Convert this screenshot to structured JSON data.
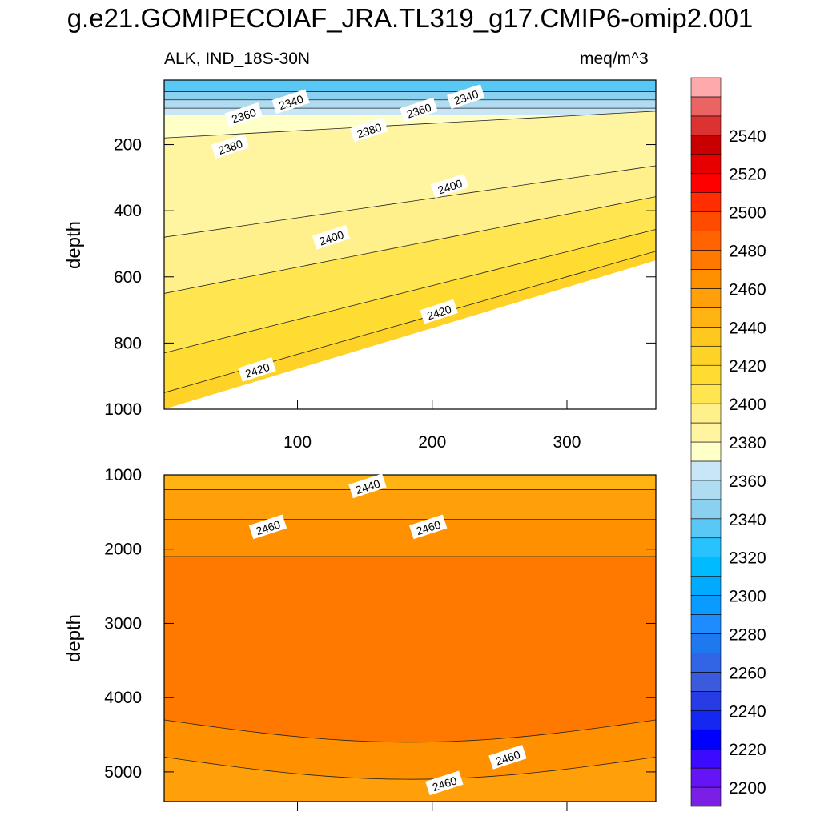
{
  "title": "g.e21.GOMIPECOIAF_JRA.TL319_g17.CMIP6-omip2.001",
  "left_string": "ALK, IND_18S-30N",
  "right_string": "meq/m^3",
  "chart_data": [
    {
      "type": "contour",
      "panel": "upper",
      "xlabel": "",
      "ylabel": "depth",
      "xlim": [
        1,
        366
      ],
      "ylim": [
        1000,
        5
      ],
      "x_ticks": [
        100,
        200,
        300
      ],
      "y_ticks": [
        200,
        400,
        600,
        800,
        1000
      ],
      "y_reversed": true,
      "contour_interval": 10,
      "bands": [
        {
          "value": 2330,
          "depth_top": 5,
          "depth_bottom": 40
        },
        {
          "value": 2340,
          "depth_top": 40,
          "depth_bottom": 65
        },
        {
          "value": 2350,
          "depth_top": 65,
          "depth_bottom": 90
        },
        {
          "value": 2360,
          "depth_top": 90,
          "depth_bottom": 110
        },
        {
          "value": 2370,
          "depth_top": 110,
          "depth_bottom": 180
        },
        {
          "value": 2380,
          "depth_top": 180,
          "depth_bottom": 480
        },
        {
          "value": 2390,
          "depth_top": 480,
          "depth_bottom": 650
        },
        {
          "value": 2400,
          "depth_top": 650,
          "depth_bottom": 830
        },
        {
          "value": 2410,
          "depth_top": 830,
          "depth_bottom": 950
        },
        {
          "value": 2420,
          "depth_top": 950,
          "depth_bottom": 1000
        }
      ],
      "labels": [
        {
          "text": "2340",
          "x": 95,
          "depth": 70
        },
        {
          "text": "2340",
          "x": 225,
          "depth": 55
        },
        {
          "text": "2360",
          "x": 60,
          "depth": 110
        },
        {
          "text": "2360",
          "x": 190,
          "depth": 95
        },
        {
          "text": "2380",
          "x": 50,
          "depth": 205
        },
        {
          "text": "2380",
          "x": 153,
          "depth": 155
        },
        {
          "text": "2400",
          "x": 125,
          "depth": 480
        },
        {
          "text": "2400",
          "x": 213,
          "depth": 325
        },
        {
          "text": "2420",
          "x": 70,
          "depth": 880
        },
        {
          "text": "2420",
          "x": 205,
          "depth": 705
        }
      ]
    },
    {
      "type": "contour",
      "panel": "lower",
      "xlabel": "",
      "ylabel": "depth",
      "xlim": [
        1,
        366
      ],
      "ylim": [
        5400,
        1000
      ],
      "y_ticks": [
        1000,
        2000,
        3000,
        4000,
        5000
      ],
      "y_reversed": true,
      "contour_interval": 10,
      "bands": [
        {
          "value": 2440,
          "depth_top": 1000,
          "depth_bottom": 1200
        },
        {
          "value": 2450,
          "depth_top": 1200,
          "depth_bottom": 1600
        },
        {
          "value": 2460,
          "depth_top": 1600,
          "depth_bottom": 2100
        },
        {
          "value": 2470,
          "depth_top": 2100,
          "depth_bottom": 4300
        },
        {
          "value": 2460,
          "depth_top": 4300,
          "depth_bottom": 4800
        },
        {
          "value": 2450,
          "depth_top": 4800,
          "depth_bottom": 5400
        }
      ],
      "labels": [
        {
          "text": "2440",
          "x": 152,
          "depth": 1150
        },
        {
          "text": "2460",
          "x": 78,
          "depth": 1700
        },
        {
          "text": "2460",
          "x": 197,
          "depth": 1700
        },
        {
          "text": "2460",
          "x": 256,
          "depth": 4800
        },
        {
          "text": "2460",
          "x": 209,
          "depth": 5150
        }
      ]
    }
  ],
  "colorbar": {
    "tick_labels": [
      "2200",
      "2220",
      "2240",
      "2260",
      "2280",
      "2300",
      "2320",
      "2340",
      "2360",
      "2380",
      "2400",
      "2420",
      "2440",
      "2460",
      "2480",
      "2500",
      "2520",
      "2540"
    ],
    "levels": [
      2200,
      2210,
      2220,
      2230,
      2240,
      2250,
      2260,
      2270,
      2280,
      2290,
      2300,
      2310,
      2320,
      2330,
      2340,
      2350,
      2360,
      2370,
      2380,
      2390,
      2400,
      2410,
      2420,
      2430,
      2440,
      2450,
      2460,
      2470,
      2480,
      2490,
      2500,
      2510,
      2520,
      2530,
      2540,
      2550
    ],
    "colors": [
      "#7a1fe6",
      "#6414f5",
      "#3c0aff",
      "#0000ff",
      "#1428f0",
      "#283ce6",
      "#3c5adc",
      "#3264e6",
      "#1e78f0",
      "#1e8cff",
      "#0a9bff",
      "#00aaff",
      "#00bbff",
      "#28c3ff",
      "#5ac8f5",
      "#8cd0f0",
      "#afdcf0",
      "#c8e6f5",
      "#ffffc8",
      "#fff5a0",
      "#fff08c",
      "#ffe650",
      "#ffdc32",
      "#ffd228",
      "#ffc81e",
      "#ffb414",
      "#ffa00a",
      "#ff9100",
      "#ff7800",
      "#ff6400",
      "#ff4b00",
      "#ff2d00",
      "#ff0000",
      "#e60000",
      "#c80000",
      "#dc3232",
      "#eb6464",
      "#ffaaaa"
    ]
  }
}
